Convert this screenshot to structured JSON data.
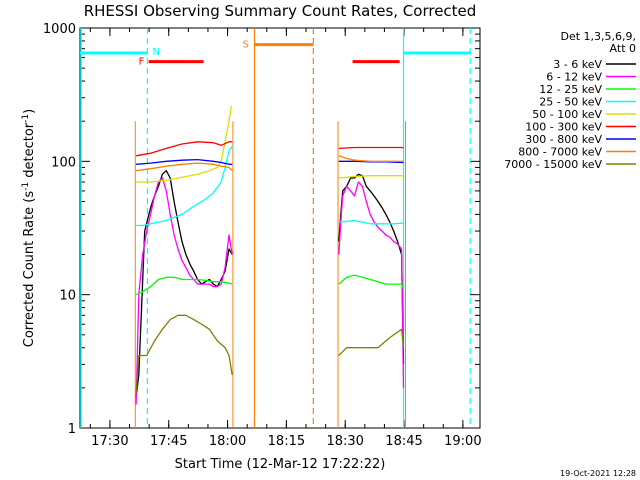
{
  "chart_data": {
    "type": "line",
    "title": "RHESSI Observing Summary Count Rates, Corrected",
    "xlabel": "Start Time (12-Mar-12 17:22:22)",
    "ylabel_parts": [
      "Corrected Count Rate (s",
      "-1",
      " detector",
      "-1",
      ")"
    ],
    "x_unit": "minutes after 17:22:22",
    "xlim": [
      0,
      102
    ],
    "ylim": [
      1,
      1000
    ],
    "y_scale": "log",
    "grid": false,
    "legend_position": "right",
    "x_ticks": [
      {
        "label": "17:30",
        "value": 7.63
      },
      {
        "label": "17:45",
        "value": 22.63
      },
      {
        "label": "18:00",
        "value": 37.63
      },
      {
        "label": "18:15",
        "value": 52.63
      },
      {
        "label": "18:30",
        "value": 67.63
      },
      {
        "label": "18:45",
        "value": 82.63
      },
      {
        "label": "19:00",
        "value": 97.63
      }
    ],
    "y_ticks": [
      {
        "label": "1",
        "value": 1
      },
      {
        "label": "10",
        "value": 10
      },
      {
        "label": "100",
        "value": 100
      },
      {
        "label": "1000",
        "value": 1000
      }
    ],
    "legend_header": [
      "Det 1,3,5,6,9,",
      "Att 0"
    ],
    "series": [
      {
        "name": "3 - 6 keV",
        "color": "#000000",
        "points": [
          [
            14.3,
            1.7
          ],
          [
            15,
            2.5
          ],
          [
            16.5,
            30
          ],
          [
            18,
            45
          ],
          [
            19,
            55
          ],
          [
            20,
            65
          ],
          [
            21,
            80
          ],
          [
            22,
            85
          ],
          [
            23,
            75
          ],
          [
            24,
            50
          ],
          [
            25,
            35
          ],
          [
            26,
            25
          ],
          [
            27,
            20
          ],
          [
            28,
            17
          ],
          [
            29,
            15
          ],
          [
            30,
            13
          ],
          [
            31,
            12
          ],
          [
            32,
            12.5
          ],
          [
            33,
            13
          ],
          [
            34,
            12
          ],
          [
            35,
            11.5
          ],
          [
            36,
            13
          ],
          [
            37,
            15
          ],
          [
            38,
            22
          ],
          [
            38.8,
            20
          ],
          [
            null,
            null
          ],
          [
            66,
            25
          ],
          [
            66.5,
            40
          ],
          [
            67,
            60
          ],
          [
            68,
            65
          ],
          [
            69,
            75
          ],
          [
            70,
            75
          ],
          [
            71,
            80
          ],
          [
            72,
            78
          ],
          [
            73,
            65
          ],
          [
            74,
            60
          ],
          [
            75,
            55
          ],
          [
            76,
            50
          ],
          [
            77,
            45
          ],
          [
            78,
            40
          ],
          [
            79,
            35
          ],
          [
            80,
            30
          ],
          [
            81,
            25
          ],
          [
            82,
            20
          ],
          [
            82.5,
            3
          ]
        ]
      },
      {
        "name": "6 - 12 keV",
        "color": "#ff00ff",
        "points": [
          [
            14.3,
            1.5
          ],
          [
            15,
            10
          ],
          [
            16,
            20
          ],
          [
            17,
            30
          ],
          [
            18,
            40
          ],
          [
            19,
            55
          ],
          [
            20,
            70
          ],
          [
            21,
            75
          ],
          [
            22,
            60
          ],
          [
            23,
            40
          ],
          [
            24,
            28
          ],
          [
            25,
            22
          ],
          [
            26,
            18
          ],
          [
            27,
            16
          ],
          [
            28,
            14
          ],
          [
            29,
            13
          ],
          [
            30,
            12
          ],
          [
            31,
            12
          ],
          [
            32,
            12
          ],
          [
            33,
            12
          ],
          [
            34,
            11.5
          ],
          [
            35,
            11.5
          ],
          [
            36,
            12
          ],
          [
            37,
            16
          ],
          [
            38,
            28
          ],
          [
            38.8,
            20
          ],
          [
            null,
            null
          ],
          [
            66,
            20
          ],
          [
            66.5,
            35
          ],
          [
            67,
            55
          ],
          [
            68,
            65
          ],
          [
            69,
            60
          ],
          [
            70,
            55
          ],
          [
            71,
            70
          ],
          [
            72,
            65
          ],
          [
            73,
            50
          ],
          [
            74,
            40
          ],
          [
            75,
            35
          ],
          [
            76,
            32
          ],
          [
            77,
            30
          ],
          [
            78,
            28
          ],
          [
            79,
            27
          ],
          [
            80,
            25
          ],
          [
            81,
            24
          ],
          [
            82,
            22
          ],
          [
            82.5,
            2
          ]
        ]
      },
      {
        "name": "12 - 25 keV",
        "color": "#00ff00",
        "points": [
          [
            14.3,
            10
          ],
          [
            16,
            10.5
          ],
          [
            18,
            11.5
          ],
          [
            20,
            13
          ],
          [
            22,
            13.5
          ],
          [
            24,
            13.5
          ],
          [
            26,
            13
          ],
          [
            28,
            13
          ],
          [
            30,
            13
          ],
          [
            32,
            12.8
          ],
          [
            34,
            12.5
          ],
          [
            36,
            12.5
          ],
          [
            38,
            12.2
          ],
          [
            38.8,
            12
          ],
          [
            null,
            null
          ],
          [
            66,
            12
          ],
          [
            68,
            13.5
          ],
          [
            70,
            14
          ],
          [
            72,
            13.5
          ],
          [
            74,
            13
          ],
          [
            76,
            12.5
          ],
          [
            78,
            12
          ],
          [
            80,
            12
          ],
          [
            82,
            12
          ],
          [
            82.5,
            11
          ]
        ]
      },
      {
        "name": "25 - 50 keV",
        "color": "#00ffff",
        "points": [
          [
            14.3,
            33
          ],
          [
            16,
            33
          ],
          [
            18,
            34
          ],
          [
            20,
            35
          ],
          [
            22,
            36
          ],
          [
            24,
            38
          ],
          [
            26,
            40
          ],
          [
            28,
            44
          ],
          [
            30,
            48
          ],
          [
            32,
            52
          ],
          [
            34,
            58
          ],
          [
            36,
            70
          ],
          [
            37,
            90
          ],
          [
            38,
            120
          ],
          [
            38.8,
            130
          ],
          [
            null,
            null
          ],
          [
            66,
            35
          ],
          [
            68,
            35.5
          ],
          [
            70,
            36
          ],
          [
            72,
            35
          ],
          [
            74,
            34
          ],
          [
            76,
            34
          ],
          [
            78,
            34
          ],
          [
            80,
            34
          ],
          [
            82,
            34.5
          ],
          [
            82.5,
            34
          ]
        ]
      },
      {
        "name": "50 - 100 keV",
        "color": "#dddd00",
        "points": [
          [
            14.3,
            70
          ],
          [
            18,
            70
          ],
          [
            22,
            72
          ],
          [
            26,
            76
          ],
          [
            30,
            80
          ],
          [
            33,
            85
          ],
          [
            35,
            90
          ],
          [
            36,
            100
          ],
          [
            37,
            140
          ],
          [
            38,
            200
          ],
          [
            38.6,
            260
          ],
          [
            null,
            null
          ],
          [
            66,
            75
          ],
          [
            70,
            77
          ],
          [
            74,
            78
          ],
          [
            78,
            78
          ],
          [
            82,
            78
          ],
          [
            82.5,
            77
          ]
        ]
      },
      {
        "name": "100 - 300 keV",
        "color": "#ff0000",
        "points": [
          [
            14.3,
            110
          ],
          [
            18,
            115
          ],
          [
            22,
            125
          ],
          [
            26,
            135
          ],
          [
            30,
            140
          ],
          [
            34,
            138
          ],
          [
            36,
            132
          ],
          [
            38,
            140
          ],
          [
            38.8,
            140
          ],
          [
            null,
            null
          ],
          [
            66,
            125
          ],
          [
            70,
            127
          ],
          [
            74,
            127
          ],
          [
            78,
            127
          ],
          [
            82,
            127
          ],
          [
            82.5,
            126
          ]
        ]
      },
      {
        "name": "300 - 800 keV",
        "color": "#0000ff",
        "points": [
          [
            14.3,
            95
          ],
          [
            18,
            97
          ],
          [
            22,
            100
          ],
          [
            26,
            102
          ],
          [
            30,
            103
          ],
          [
            34,
            100
          ],
          [
            36,
            98
          ],
          [
            38,
            95
          ],
          [
            38.8,
            95
          ],
          [
            null,
            null
          ],
          [
            66,
            100
          ],
          [
            70,
            100
          ],
          [
            74,
            99
          ],
          [
            78,
            99
          ],
          [
            82,
            98
          ],
          [
            82.5,
            98
          ]
        ]
      },
      {
        "name": "800 - 7000 keV",
        "color": "#ff7f00",
        "points": [
          [
            14.3,
            85
          ],
          [
            18,
            88
          ],
          [
            22,
            92
          ],
          [
            26,
            95
          ],
          [
            30,
            97
          ],
          [
            34,
            95
          ],
          [
            36,
            92
          ],
          [
            38,
            90
          ],
          [
            38.8,
            85
          ],
          [
            null,
            null
          ],
          [
            66,
            110
          ],
          [
            68,
            105
          ],
          [
            70,
            102
          ],
          [
            74,
            100
          ],
          [
            78,
            100
          ],
          [
            82,
            100
          ],
          [
            82.5,
            100
          ]
        ]
      },
      {
        "name": "7000 - 15000 keV",
        "color": "#808000",
        "points": [
          [
            14.3,
            1.8
          ],
          [
            15,
            3.5
          ],
          [
            17,
            3.5
          ],
          [
            19,
            4.5
          ],
          [
            21,
            5.5
          ],
          [
            23,
            6.5
          ],
          [
            25,
            7
          ],
          [
            27,
            7
          ],
          [
            29,
            6.5
          ],
          [
            31,
            6
          ],
          [
            33,
            5.5
          ],
          [
            35,
            4.5
          ],
          [
            37,
            4
          ],
          [
            38,
            3.5
          ],
          [
            38.8,
            2.5
          ],
          [
            null,
            null
          ],
          [
            66,
            3.5
          ],
          [
            68,
            4
          ],
          [
            70,
            4
          ],
          [
            72,
            4
          ],
          [
            74,
            4
          ],
          [
            76,
            4
          ],
          [
            78,
            4.5
          ],
          [
            80,
            5
          ],
          [
            82,
            5.5
          ],
          [
            82.5,
            4
          ]
        ]
      }
    ],
    "markers": [
      {
        "label": "N",
        "color": "#00ffff",
        "x_start": 0,
        "x_end": 17.2,
        "y": 650,
        "dashed_line_x": 17.2
      },
      {
        "label": "F",
        "color": "#ff0000",
        "x_start": 17.5,
        "x_end": 31.5,
        "y": 560
      },
      {
        "label": "S",
        "color": "#ff7f00",
        "x_start": 44.5,
        "x_end": 59.5,
        "y": 750,
        "solid_line_x": 44.5,
        "dashed_line_x": 59.5
      },
      {
        "label": "",
        "color": "#ff0000",
        "x_start": 69.5,
        "x_end": 81.5,
        "y": 560
      },
      {
        "label": "",
        "color": "#00ffff",
        "x_start": 82.5,
        "x_end": 99.5,
        "y": 650,
        "solid_line_x": 82.5,
        "dashed_line_x": 99.5
      }
    ],
    "orange_window_x": [
      14.1,
      39,
      65.8,
      83
    ],
    "cyan_left_edge_x": 0,
    "footer_text": "19-Oct-2021 12:28"
  }
}
